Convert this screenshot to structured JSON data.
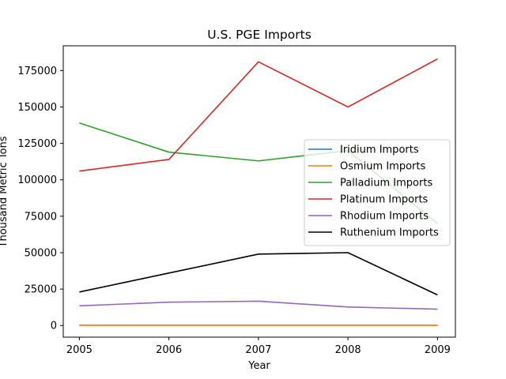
{
  "chart_data": {
    "type": "line",
    "title": "U.S. PGE Imports",
    "xlabel": "Year",
    "ylabel": "Thousand Metric Tons",
    "x": [
      2005,
      2006,
      2007,
      2008,
      2009
    ],
    "xlim": [
      2004.82,
      2009.2
    ],
    "ylim": [
      -8000,
      192000
    ],
    "yticks": [
      0,
      25000,
      50000,
      75000,
      100000,
      125000,
      150000,
      175000
    ],
    "grid": false,
    "legend_position": "center-right",
    "series": [
      {
        "name": "Iridium Imports",
        "color": "#1f77b4",
        "values": [
          200,
          200,
          200,
          200,
          200
        ]
      },
      {
        "name": "Osmium Imports",
        "color": "#ff7f0e",
        "values": [
          150,
          150,
          150,
          150,
          150
        ]
      },
      {
        "name": "Palladium Imports",
        "color": "#2ca02c",
        "values": [
          139000,
          119000,
          113000,
          120000,
          70000
        ]
      },
      {
        "name": "Platinum Imports",
        "color": "#d62728",
        "values": [
          106000,
          114000,
          181000,
          150000,
          183000
        ]
      },
      {
        "name": "Rhodium Imports",
        "color": "#9467bd",
        "values": [
          13500,
          16000,
          16700,
          12700,
          11200
        ]
      },
      {
        "name": "Ruthenium Imports",
        "color": "#000000",
        "values": [
          23000,
          36000,
          49000,
          50000,
          21000
        ]
      }
    ]
  }
}
